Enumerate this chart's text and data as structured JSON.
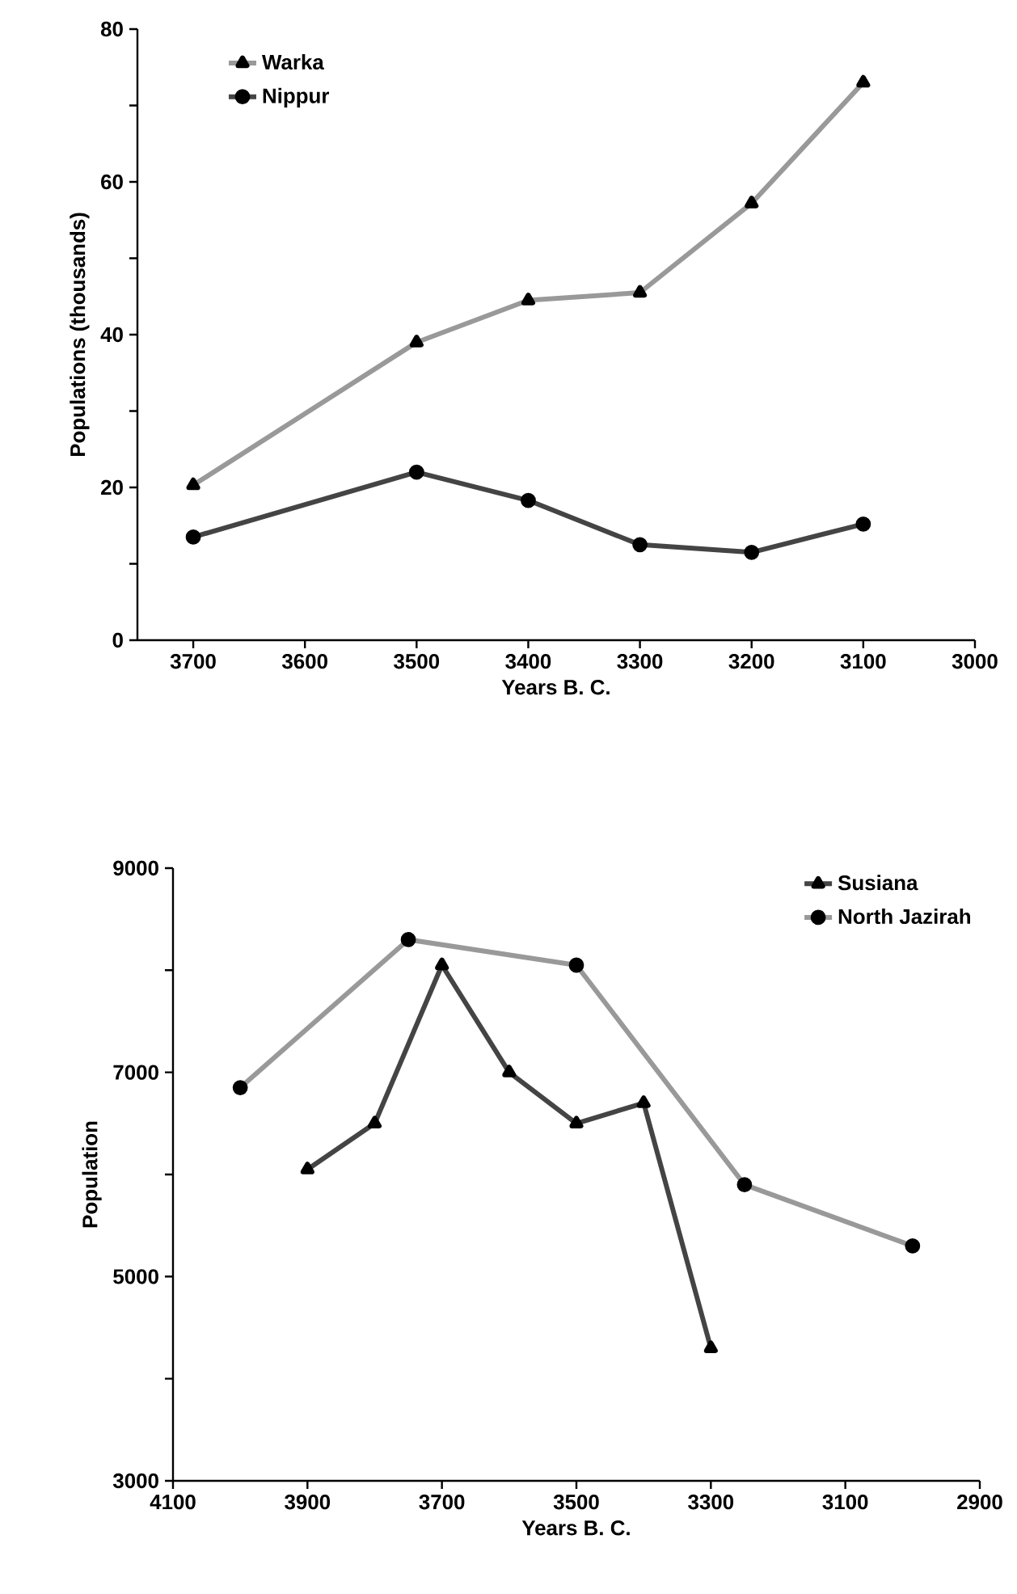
{
  "chart_data": [
    {
      "type": "line",
      "xlabel": "Years B. C.",
      "ylabel": "Populations (thousands)",
      "xlim": [
        3750,
        3000
      ],
      "ylim": [
        0,
        80
      ],
      "xticks": [
        3700,
        3600,
        3500,
        3400,
        3300,
        3200,
        3100,
        3000
      ],
      "yticks": [
        0,
        {
          "value": 10,
          "label": null
        },
        20,
        {
          "value": 30,
          "label": null
        },
        40,
        {
          "value": 50,
          "label": null
        },
        60,
        {
          "value": 70,
          "label": null
        },
        80
      ],
      "legend": "top left",
      "series": [
        {
          "name": "Warka",
          "color": "#999999",
          "marker": "triangle",
          "x": [
            3700,
            3500,
            3400,
            3300,
            3200,
            3100
          ],
          "values": [
            20.3,
            39,
            44.5,
            45.5,
            57.2,
            73
          ]
        },
        {
          "name": "Nippur",
          "color": "#444444",
          "marker": "circle",
          "x": [
            3700,
            3500,
            3400,
            3300,
            3200,
            3100
          ],
          "values": [
            13.5,
            22,
            18.3,
            12.5,
            11.5,
            15.2
          ]
        }
      ]
    },
    {
      "type": "line",
      "xlabel": "Years B. C.",
      "ylabel": "Population",
      "xlim": [
        4100,
        2900
      ],
      "ylim": [
        3000,
        9000
      ],
      "xticks": [
        4100,
        3900,
        3700,
        3500,
        3300,
        3100,
        2900
      ],
      "yticks": [
        3000,
        {
          "value": 4000,
          "label": null
        },
        5000,
        {
          "value": 6000,
          "label": null
        },
        7000,
        {
          "value": 8000,
          "label": null
        },
        9000
      ],
      "legend": "top right",
      "series": [
        {
          "name": "Susiana",
          "color": "#444444",
          "marker": "triangle",
          "x": [
            3900,
            3800,
            3700,
            3600,
            3500,
            3400,
            3300
          ],
          "values": [
            6050,
            6500,
            8050,
            7000,
            6500,
            6700,
            4300
          ]
        },
        {
          "name": "North Jazirah",
          "color": "#999999",
          "marker": "circle",
          "x": [
            4000,
            3750,
            3500,
            3250,
            3000
          ],
          "values": [
            6850,
            8300,
            8050,
            5900,
            5300
          ]
        }
      ]
    }
  ]
}
